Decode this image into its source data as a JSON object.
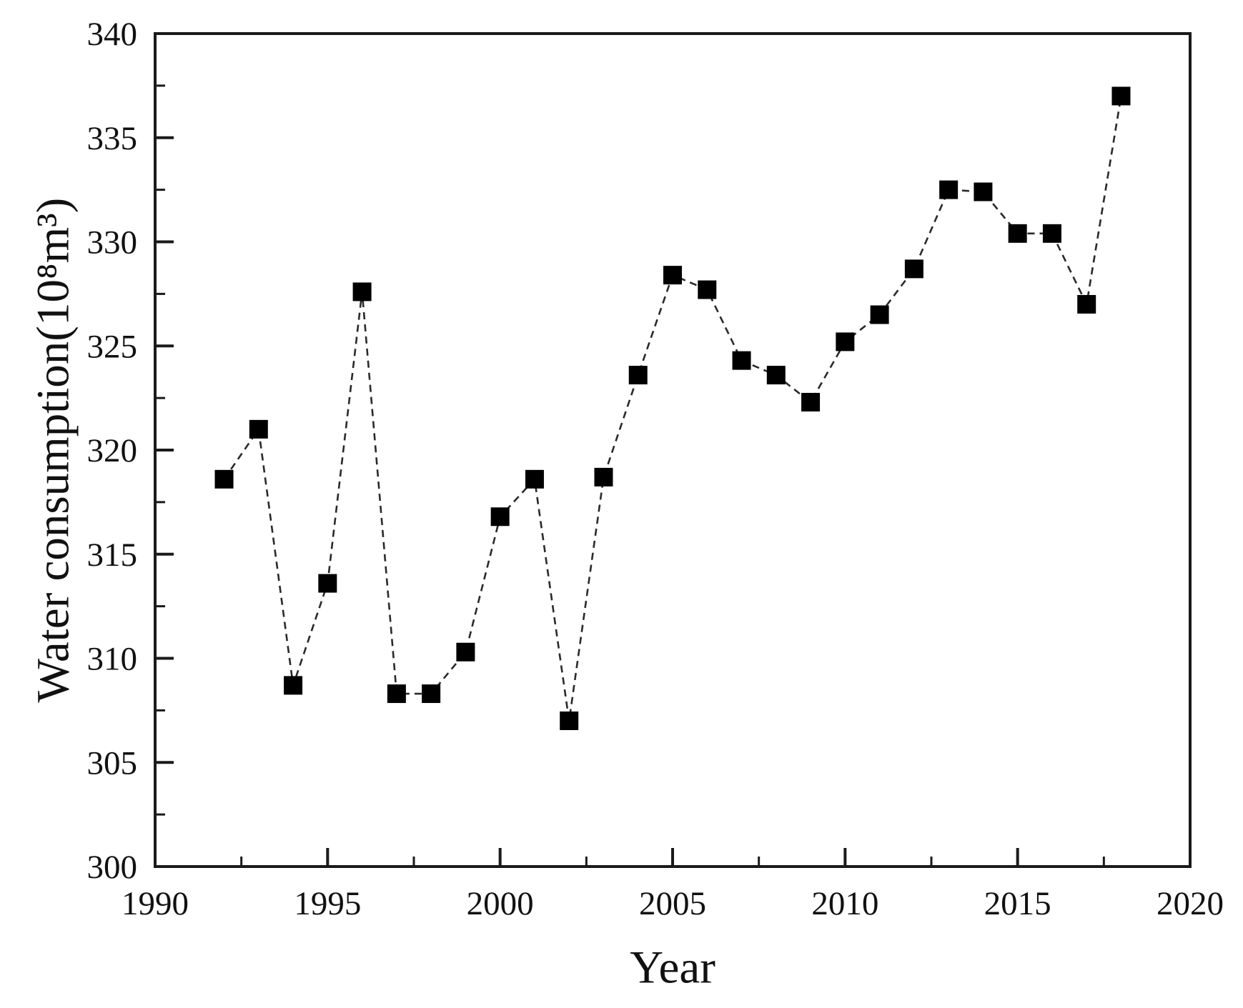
{
  "figure": {
    "background_color": "#ffffff",
    "axis_color": "#1a1a1a",
    "text_color": "#111111"
  },
  "chart_data": {
    "type": "line",
    "title": "",
    "xlabel": "Year",
    "ylabel": "Water consumption(10⁸m³)",
    "series": [
      {
        "name": "Water consumption",
        "x": [
          1992,
          1993,
          1994,
          1995,
          1996,
          1997,
          1998,
          1999,
          2000,
          2001,
          2002,
          2003,
          2004,
          2005,
          2006,
          2007,
          2008,
          2009,
          2010,
          2011,
          2012,
          2013,
          2014,
          2015,
          2016,
          2017,
          2018
        ],
        "values": [
          318.6,
          321.0,
          308.7,
          313.6,
          327.6,
          308.3,
          308.3,
          310.3,
          316.8,
          318.6,
          307.0,
          318.7,
          323.6,
          328.4,
          327.7,
          324.3,
          323.6,
          322.3,
          325.2,
          326.5,
          328.7,
          332.5,
          332.4,
          330.4,
          330.4,
          327.0,
          337.0
        ],
        "marker": "filled-square",
        "marker_color": "#000000",
        "line_style": "dashed",
        "line_color": "#2a2a2a"
      }
    ],
    "xlim": [
      1990,
      2020
    ],
    "ylim": [
      300,
      340
    ],
    "x_major_ticks": [
      1990,
      1995,
      2000,
      2005,
      2010,
      2015,
      2020
    ],
    "y_major_ticks": [
      300,
      305,
      310,
      315,
      320,
      325,
      330,
      335,
      340
    ],
    "x_minor_tick_step": 2.5,
    "y_minor_tick_step": 2.5,
    "tick_direction": "in",
    "grid": false,
    "legend_position": "none"
  }
}
